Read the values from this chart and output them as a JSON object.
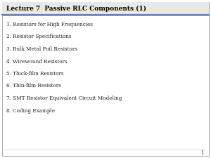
{
  "title": "Lecture 7  Passive RLC Components (1)",
  "items": [
    "1. Resistors for High Frequencies",
    "2. Resistor Specifications",
    "3. Bulk Metal Foil Resistors",
    "4. Wirewound Resistors",
    "5. Thick-film Resistors",
    "6. Thin-film Resistors",
    "7. SMT Resistor Equivalent Circuit Modeling",
    "8. Coding Example"
  ],
  "bg_color": "#ffffff",
  "title_bg_color": "#e8e8e4",
  "outer_border_color": "#999999",
  "title_color": "#000000",
  "item_color": "#222222",
  "header_line_color_left": "#8899bb",
  "header_line_color_right": "#334477",
  "page_number": "1",
  "title_fontsize": 6.5,
  "item_fontsize": 5.2,
  "page_num_fontsize": 5.0
}
